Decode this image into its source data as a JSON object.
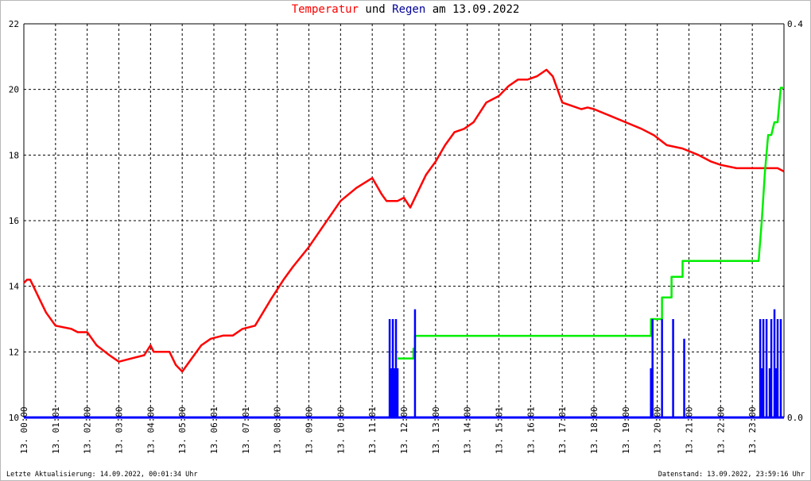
{
  "title": {
    "part1": "Temperatur",
    "part2": " und ",
    "part3": "Regen",
    "part4": " am 13.09.2022"
  },
  "footer": {
    "left": "Letzte Aktualisierung: 14.09.2022, 00:01:34 Uhr",
    "right": "Datenstand: 13.09.2022, 23:59:16 Uhr"
  },
  "chart_data": {
    "type": "line",
    "title": "Temperatur und Regen am 13.09.2022",
    "x_ticks": [
      "13. 00:00",
      "13. 01:01",
      "13. 02:00",
      "13. 03:00",
      "13. 04:00",
      "13. 05:00",
      "13. 06:01",
      "13. 07:01",
      "13. 08:00",
      "13. 09:00",
      "13. 10:00",
      "13. 11:01",
      "13. 12:00",
      "13. 13:00",
      "13. 14:00",
      "13. 15:01",
      "13. 16:01",
      "13. 17:01",
      "13. 18:00",
      "13. 19:00",
      "13. 20:00",
      "13. 21:00",
      "13. 22:00",
      "13. 23:00"
    ],
    "xlim": [
      0,
      24
    ],
    "y_left_ticks": [
      "10",
      "12",
      "14",
      "16",
      "18",
      "20",
      "22"
    ],
    "ylim_left": [
      10,
      22
    ],
    "y_right_ticks": [
      "0.0",
      "0.4"
    ],
    "ylim_right": [
      0,
      0.4
    ],
    "grid": true,
    "colors": {
      "temperature": "#ff0000",
      "rain": "#0000ff",
      "rain_sum": "#00ee00",
      "axis": "#000000"
    },
    "series": [
      {
        "color": "#ff0000",
        "axis": "left",
        "x": [
          0,
          0.1,
          0.2,
          0.3,
          0.5,
          0.7,
          1.0,
          1.5,
          1.7,
          2.0,
          2.3,
          2.7,
          3.0,
          3.4,
          3.8,
          4.0,
          4.1,
          4.2,
          4.6,
          4.8,
          5.0,
          5.3,
          5.6,
          5.9,
          6.3,
          6.6,
          6.9,
          7.3,
          7.8,
          8.2,
          8.5,
          9.0,
          9.5,
          10.0,
          10.5,
          11.0,
          11.3,
          11.45,
          11.6,
          11.8,
          12.0,
          12.2,
          12.45,
          12.7,
          13.0,
          13.3,
          13.6,
          13.9,
          14.2,
          14.6,
          15.0,
          15.3,
          15.6,
          15.9,
          16.2,
          16.5,
          16.7,
          17.0,
          17.3,
          17.6,
          17.8,
          18.0,
          18.5,
          19.0,
          19.5,
          19.9,
          20.3,
          20.8,
          21.3,
          21.7,
          22.0,
          22.5,
          23.0,
          23.3,
          23.6,
          23.8,
          24.0
        ],
        "y": [
          14.1,
          14.2,
          14.2,
          14.0,
          13.6,
          13.2,
          12.8,
          12.7,
          12.6,
          12.6,
          12.2,
          11.9,
          11.7,
          11.8,
          11.9,
          12.2,
          12.0,
          12.0,
          12.0,
          11.6,
          11.4,
          11.8,
          12.2,
          12.4,
          12.5,
          12.5,
          12.7,
          12.8,
          13.6,
          14.2,
          14.6,
          15.2,
          15.9,
          16.6,
          17.0,
          17.3,
          16.8,
          16.6,
          16.6,
          16.6,
          16.7,
          16.4,
          16.9,
          17.4,
          17.8,
          18.3,
          18.7,
          18.8,
          19.0,
          19.6,
          19.8,
          20.1,
          20.3,
          20.3,
          20.4,
          20.6,
          20.4,
          19.6,
          19.5,
          19.4,
          19.45,
          19.4,
          19.2,
          19.0,
          18.8,
          18.6,
          18.3,
          18.2,
          18.0,
          17.8,
          17.7,
          17.6,
          17.6,
          17.6,
          17.6,
          17.6,
          17.5
        ]
      },
      {
        "color": "#00ee00",
        "axis": "right",
        "x": [
          11.8,
          12.3,
          12.3,
          12.35,
          12.35,
          19.8,
          19.8,
          20.15,
          20.15,
          20.45,
          20.45,
          20.8,
          20.8,
          23.2,
          23.3,
          23.4,
          23.5,
          23.6,
          23.7,
          23.8,
          23.9,
          24.0
        ],
        "y": [
          0.06,
          0.06,
          0.07,
          0.07,
          0.083,
          0.083,
          0.1,
          0.1,
          0.122,
          0.122,
          0.143,
          0.143,
          0.159,
          0.159,
          0.2,
          0.25,
          0.287,
          0.287,
          0.3,
          0.3,
          0.335,
          0.335
        ]
      },
      {
        "color": "#0000ff",
        "axis": "right",
        "type": "bar",
        "x": [
          11.55,
          11.6,
          11.65,
          11.7,
          11.75,
          11.8,
          12.35,
          19.8,
          19.85,
          20.15,
          20.5,
          20.85,
          23.25,
          23.3,
          23.35,
          23.45,
          23.55,
          23.6,
          23.7,
          23.75,
          23.8,
          23.9
        ],
        "y": [
          0.1,
          0.05,
          0.1,
          0.05,
          0.1,
          0.05,
          0.11,
          0.05,
          0.1,
          0.1,
          0.1,
          0.08,
          0.1,
          0.05,
          0.1,
          0.1,
          0.05,
          0.1,
          0.11,
          0.05,
          0.1,
          0.1
        ]
      }
    ]
  }
}
